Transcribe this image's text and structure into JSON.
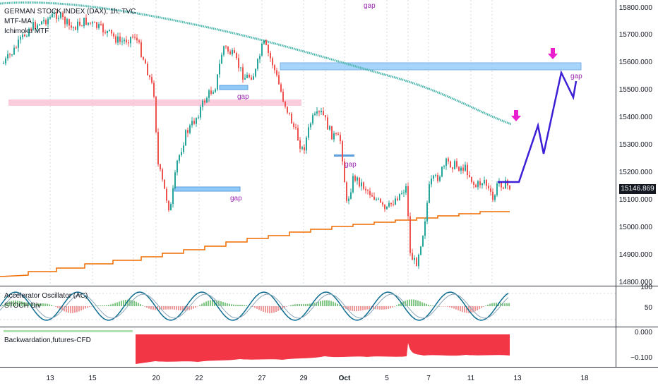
{
  "header": {
    "title": "GERMAN STOCK INDEX (DAX), 1h, TVC",
    "indicators": [
      "MTF-MA",
      "Ichimoku MTF"
    ]
  },
  "price_axis": {
    "ticks": [
      "15800.000",
      "15700.000",
      "15600.000",
      "15500.000",
      "15400.000",
      "15300.000",
      "15200.000",
      "15100.000",
      "15000.000",
      "14900.000",
      "14800.000"
    ],
    "current_price": "15146.869"
  },
  "x_axis": {
    "ticks": [
      "13",
      "15",
      "20",
      "22",
      "27",
      "29",
      "Oct",
      "5",
      "7",
      "11",
      "13",
      "18"
    ]
  },
  "annotations": {
    "gap_labels": [
      "gap",
      "gap",
      "gap",
      "gap",
      "gap"
    ]
  },
  "oscillator_pane": {
    "label_ac": "Accelerator Oscillator (AC)",
    "label_stoch": "STOCH Div",
    "ticks": [
      "100",
      "50"
    ]
  },
  "backwardation_pane": {
    "label": "Backwardation,futures-CFD",
    "ticks": [
      "0.000",
      "−0.100"
    ]
  },
  "colors": {
    "up": "#26a69a",
    "down": "#ef5350",
    "ma": "#4db6ac",
    "ichimoku": "#ef6c00",
    "projection": "#3d1fd6",
    "arrow": "#e91ecf",
    "zone_blue": "#90caf9",
    "zone_pink": "#f8bbd0"
  }
}
